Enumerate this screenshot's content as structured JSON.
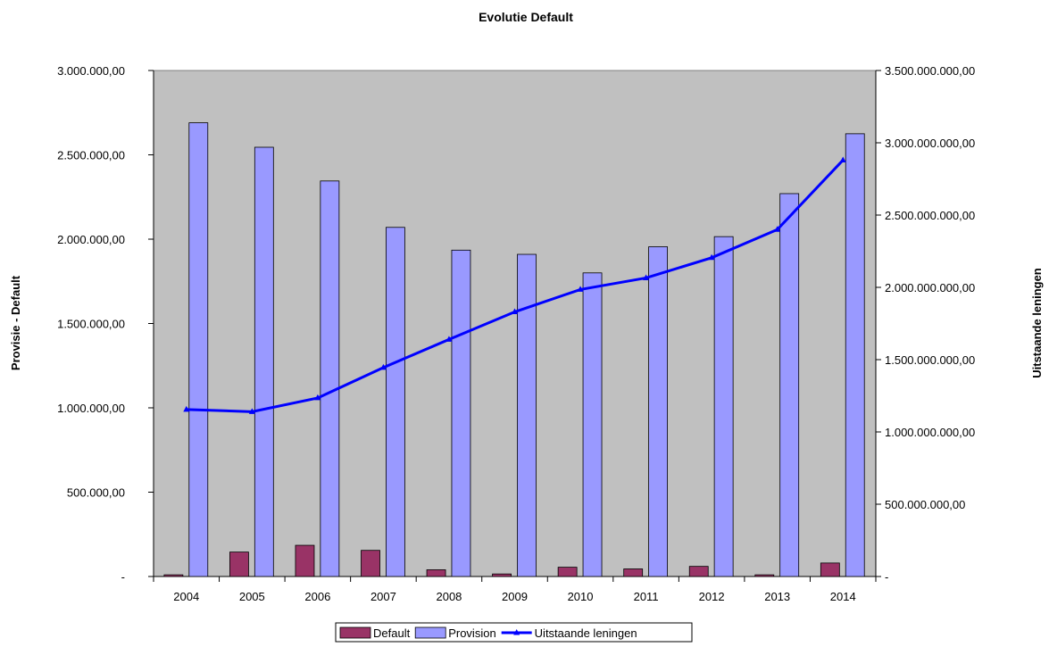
{
  "chart_data": {
    "type": "bar",
    "title": "Evolutie Default",
    "ylabel_left": "Provisie - Default",
    "ylabel_right": "Uitstaande leningen",
    "categories": [
      "2004",
      "2005",
      "2006",
      "2007",
      "2008",
      "2009",
      "2010",
      "2011",
      "2012",
      "2013",
      "2014"
    ],
    "ylim_left": [
      0,
      3000000
    ],
    "ylim_right": [
      0,
      3500000000
    ],
    "left_ticks": [
      "-",
      "500.000,00",
      "1.000.000,00",
      "1.500.000,00",
      "2.000.000,00",
      "2.500.000,00",
      "3.000.000,00"
    ],
    "right_ticks": [
      "-",
      "500.000.000,00",
      "1.000.000.000,00",
      "1.500.000.000,00",
      "2.000.000.000,00",
      "2.500.000.000,00",
      "3.000.000.000,00",
      "3.500.000.000,00"
    ],
    "plot_background": "#c0c0c0",
    "series": [
      {
        "name": "Default",
        "kind": "bar",
        "axis": "left",
        "color": "#993366",
        "values": [
          10000,
          145000,
          185000,
          155000,
          40000,
          15000,
          55000,
          45000,
          60000,
          10000,
          80000
        ]
      },
      {
        "name": "Provision",
        "kind": "bar",
        "axis": "left",
        "color": "#9999ff",
        "values": [
          2690000,
          2545000,
          2345000,
          2070000,
          1935000,
          1910000,
          1800000,
          1955000,
          2015000,
          2270000,
          2625000
        ]
      },
      {
        "name": "Uitstaande leningen",
        "kind": "line",
        "axis": "right",
        "color": "#0000ff",
        "values": [
          1155000000,
          1140000000,
          1235000000,
          1445000000,
          1640000000,
          1830000000,
          1985000000,
          2065000000,
          2205000000,
          2400000000,
          2880000000
        ]
      }
    ],
    "legend": {
      "position": "bottom"
    },
    "grid": false
  }
}
